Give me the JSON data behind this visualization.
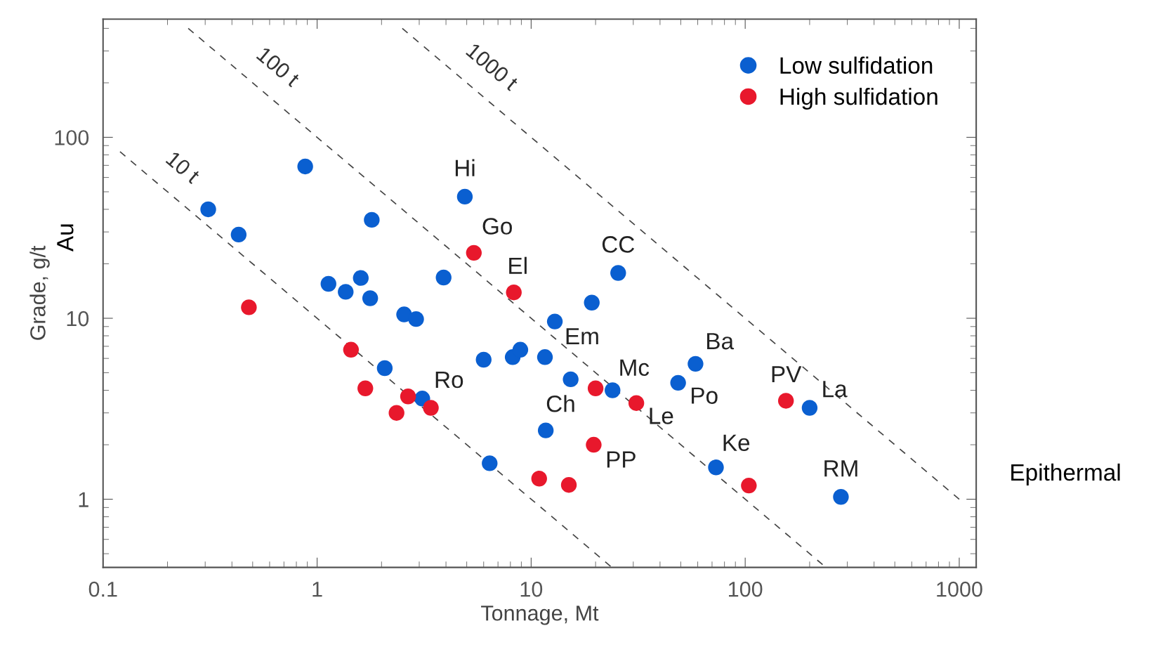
{
  "chart_data": {
    "type": "scatter",
    "xlabel": "Tonnage, Mt",
    "ylabel": "Grade, g/t",
    "log": "xy",
    "xlim": [
      0.1,
      1200
    ],
    "ylim": [
      0.42,
      450
    ],
    "xticks": [
      0.1,
      1,
      10,
      100,
      1000
    ],
    "yticks": [
      1,
      10,
      100
    ],
    "grid": false,
    "legend": "top right",
    "marker": "circle",
    "series": [
      {
        "name": "Low sulfidation",
        "color": "#0a5fd0",
        "x": [
          0.31,
          0.43,
          0.88,
          1.8,
          1.13,
          1.36,
          1.6,
          1.77,
          2.55,
          2.9,
          3.9,
          4.9,
          2.07,
          3.1,
          6.0,
          8.2,
          8.9,
          11.6,
          6.4,
          12.9,
          19.2,
          25.5,
          15.3,
          24,
          11.7,
          48.6,
          58.6,
          73,
          200,
          280
        ],
        "values": [
          40,
          29,
          69,
          35,
          15.5,
          14,
          16.7,
          12.9,
          10.5,
          9.9,
          16.8,
          47,
          5.3,
          3.6,
          5.9,
          6.1,
          6.7,
          6.1,
          1.58,
          9.6,
          12.2,
          17.8,
          4.6,
          4.0,
          2.4,
          4.4,
          5.6,
          1.5,
          3.2,
          1.03
        ]
      },
      {
        "name": "High sulfidation",
        "color": "#e8182c",
        "x": [
          0.48,
          5.4,
          8.3,
          1.44,
          1.68,
          2.66,
          2.35,
          3.4,
          20,
          31,
          19.6,
          10.9,
          15,
          104,
          155
        ],
        "values": [
          11.5,
          23,
          13.9,
          6.7,
          4.1,
          3.7,
          3.0,
          3.2,
          4.1,
          3.4,
          2.0,
          1.3,
          1.2,
          1.19,
          3.5
        ]
      },
      {
        "type": "line",
        "name": "10 t",
        "color": "#444444",
        "line_style": "dashed",
        "marker": "none",
        "x": [
          0.12,
          23.5
        ],
        "values": [
          83.3,
          0.426
        ]
      },
      {
        "type": "line",
        "name": "100 t",
        "color": "#444444",
        "line_style": "dashed",
        "marker": "none",
        "x": [
          0.25,
          230
        ],
        "values": [
          400,
          0.435
        ]
      },
      {
        "type": "line",
        "name": "1000 t",
        "color": "#444444",
        "line_style": "dashed",
        "marker": "none",
        "x": [
          2.5,
          1000
        ],
        "values": [
          400,
          1
        ]
      }
    ],
    "annotations": [
      "Au",
      "Epithermal",
      {
        "text": "Hi",
        "x": 4.9,
        "y": 47
      },
      {
        "text": "Go",
        "x": 5.4,
        "y": 23
      },
      {
        "text": "El",
        "x": 8.3,
        "y": 13.9
      },
      {
        "text": "CC",
        "x": 25.5,
        "y": 17.8
      },
      {
        "text": "Em",
        "x": 12.9,
        "y": 9.6
      },
      {
        "text": "Mc",
        "x": 24,
        "y": 4.0
      },
      {
        "text": "Ba",
        "x": 58.6,
        "y": 5.6
      },
      {
        "text": "Po",
        "x": 48.6,
        "y": 4.4
      },
      {
        "text": "Le",
        "x": 31,
        "y": 3.4
      },
      {
        "text": "Ro",
        "x": 3.1,
        "y": 3.6
      },
      {
        "text": "Ch",
        "x": 11.7,
        "y": 2.4
      },
      {
        "text": "PP",
        "x": 19.6,
        "y": 2.0
      },
      {
        "text": "Ke",
        "x": 73,
        "y": 1.5
      },
      {
        "text": "PV",
        "x": 155,
        "y": 3.5
      },
      {
        "text": "La",
        "x": 200,
        "y": 3.2
      },
      {
        "text": "RM",
        "x": 280,
        "y": 1.03
      }
    ]
  }
}
